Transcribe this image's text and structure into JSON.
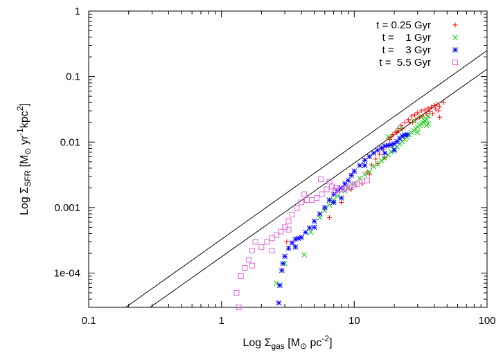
{
  "chart_data": {
    "type": "scatter",
    "x_scale": "log",
    "y_scale": "log",
    "xlim": [
      0.1,
      100
    ],
    "ylim": [
      3e-05,
      1
    ],
    "x_ticks": [
      {
        "value": 0.1,
        "label": "0.1"
      },
      {
        "value": 1,
        "label": "1"
      },
      {
        "value": 10,
        "label": "10"
      },
      {
        "value": 100,
        "label": "100"
      }
    ],
    "y_ticks": [
      {
        "value": 0.0001,
        "label": "1e-04"
      },
      {
        "value": 0.001,
        "label": "0.001"
      },
      {
        "value": 0.01,
        "label": "0.01"
      },
      {
        "value": 0.1,
        "label": "0.1"
      },
      {
        "value": 1,
        "label": "1"
      }
    ],
    "xlabel": {
      "prefix": "Log Σ",
      "sub": "gas",
      "unit_open": " [M",
      "sun": "⊙",
      "unit_mid": " pc",
      "sup": "-2",
      "unit_close": "]"
    },
    "ylabel": {
      "prefix": "Log Σ",
      "sub": "SFR",
      "unit_open": " [M",
      "sun": "⊙",
      "unit_mid1": " yr",
      "sup1": "-1",
      "unit_mid2": "kpc",
      "sup2": "2",
      "unit_close": "]"
    },
    "legend_position": "top-right",
    "reference_lines": [
      {
        "name": "upper",
        "x": [
          0.19,
          100
        ],
        "y": [
          3e-05,
          0.25
        ]
      },
      {
        "name": "lower",
        "x": [
          0.29,
          100
        ],
        "y": [
          3e-05,
          0.13
        ]
      }
    ],
    "series": [
      {
        "name": "t = 0.25 Gyr",
        "marker": "plus",
        "color": "#ff0000",
        "points": [
          [
            11.5,
            0.0023
          ],
          [
            12.5,
            0.0035
          ],
          [
            13.5,
            0.0045
          ],
          [
            14.5,
            0.0055
          ],
          [
            15.5,
            0.0065
          ],
          [
            16.5,
            0.0078
          ],
          [
            17.5,
            0.009
          ],
          [
            18.5,
            0.011
          ],
          [
            19.5,
            0.013
          ],
          [
            20.5,
            0.0145
          ],
          [
            21.5,
            0.016
          ],
          [
            22.5,
            0.018
          ],
          [
            24,
            0.02
          ],
          [
            25.5,
            0.022
          ],
          [
            27,
            0.025
          ],
          [
            28.5,
            0.026
          ],
          [
            30,
            0.028
          ],
          [
            32,
            0.03
          ],
          [
            34,
            0.031
          ],
          [
            36,
            0.033
          ],
          [
            38,
            0.034
          ],
          [
            40,
            0.036
          ],
          [
            42,
            0.038
          ],
          [
            44,
            0.035
          ],
          [
            47,
            0.04
          ],
          [
            43,
            0.03
          ],
          [
            41,
            0.032
          ],
          [
            39,
            0.027
          ],
          [
            37,
            0.029
          ],
          [
            35,
            0.027
          ],
          [
            33,
            0.025
          ],
          [
            31,
            0.024
          ],
          [
            29,
            0.022
          ],
          [
            27.5,
            0.02
          ],
          [
            26,
            0.02
          ],
          [
            23,
            0.016
          ],
          [
            21,
            0.014
          ],
          [
            19,
            0.012
          ],
          [
            44,
            0.024
          ],
          [
            8,
            0.0012
          ],
          [
            3.1,
            0.0003
          ],
          [
            6.5,
            0.0007
          ],
          [
            17,
            0.0058
          ],
          [
            15,
            0.0047
          ],
          [
            13,
            0.0032
          ],
          [
            9.5,
            0.0019
          ]
        ]
      },
      {
        "name": "t =    1 Gyr",
        "marker": "cross",
        "color": "#00c800",
        "points": [
          [
            2.6,
            7e-05
          ],
          [
            3,
            0.00014
          ],
          [
            3.6,
            0.00025
          ],
          [
            4.2,
            0.00019
          ],
          [
            4.7,
            0.00042
          ],
          [
            5.5,
            0.0007
          ],
          [
            6,
            0.0009
          ],
          [
            6.5,
            0.0011
          ],
          [
            7,
            0.0013
          ],
          [
            7.5,
            0.0015
          ],
          [
            8.5,
            0.0018
          ],
          [
            9,
            0.002
          ],
          [
            10,
            0.0023
          ],
          [
            11,
            0.0028
          ],
          [
            12,
            0.0032
          ],
          [
            13,
            0.0035
          ],
          [
            14,
            0.0042
          ],
          [
            15,
            0.0046
          ],
          [
            16,
            0.0052
          ],
          [
            17,
            0.0057
          ],
          [
            18,
            0.0064
          ],
          [
            19,
            0.0071
          ],
          [
            20,
            0.0078
          ],
          [
            21,
            0.0085
          ],
          [
            22,
            0.0094
          ],
          [
            23,
            0.0102
          ],
          [
            24,
            0.011
          ],
          [
            25,
            0.012
          ],
          [
            26,
            0.013
          ],
          [
            27,
            0.014
          ],
          [
            28,
            0.015
          ],
          [
            29,
            0.016
          ],
          [
            30,
            0.017
          ],
          [
            31,
            0.018
          ],
          [
            32,
            0.019
          ],
          [
            33,
            0.02
          ],
          [
            34,
            0.021
          ],
          [
            35,
            0.022
          ],
          [
            36,
            0.019
          ],
          [
            35,
            0.018
          ],
          [
            30,
            0.014
          ],
          [
            32,
            0.024
          ],
          [
            36,
            0.025
          ],
          [
            28,
            0.021
          ],
          [
            22,
            0.016
          ],
          [
            18,
            0.012
          ]
        ]
      },
      {
        "name": "t =    3 Gyr",
        "marker": "star",
        "color": "#0000ff",
        "points": [
          [
            2.7,
            3.5e-05
          ],
          [
            2.75,
            6.5e-05
          ],
          [
            2.85,
            0.00011
          ],
          [
            3,
            0.00018
          ],
          [
            3.2,
            0.00024
          ],
          [
            3.4,
            0.00029
          ],
          [
            3.6,
            0.00033
          ],
          [
            3.8,
            0.00034
          ],
          [
            4,
            0.00035
          ],
          [
            4.3,
            0.00042
          ],
          [
            4.6,
            0.00049
          ],
          [
            5,
            0.00062
          ],
          [
            5.5,
            0.0008
          ],
          [
            6,
            0.001
          ],
          [
            6.5,
            0.0013
          ],
          [
            7,
            0.0016
          ],
          [
            7.5,
            0.0018
          ],
          [
            8,
            0.002
          ],
          [
            8.5,
            0.0023
          ],
          [
            9,
            0.0026
          ],
          [
            9.5,
            0.0031
          ],
          [
            10,
            0.0036
          ],
          [
            11,
            0.0044
          ],
          [
            12,
            0.0053
          ],
          [
            13,
            0.006
          ],
          [
            14,
            0.0068
          ],
          [
            15,
            0.0075
          ],
          [
            16,
            0.0081
          ],
          [
            17,
            0.0087
          ],
          [
            18,
            0.0089
          ],
          [
            19,
            0.0091
          ],
          [
            20,
            0.0094
          ],
          [
            21,
            0.0102
          ],
          [
            22,
            0.0114
          ],
          [
            23,
            0.0124
          ],
          [
            24,
            0.0128
          ],
          [
            25,
            0.013
          ],
          [
            20,
            0.0075
          ],
          [
            17,
            0.0068
          ],
          [
            12,
            0.0044
          ],
          [
            8,
            0.0014
          ],
          [
            7,
            0.0012
          ],
          [
            5,
            0.0005
          ],
          [
            3.6,
            0.00025
          ],
          [
            2.9,
            0.00014
          ]
        ]
      },
      {
        "name": "t =  5.5 Gyr",
        "marker": "square",
        "color": "#e060e0",
        "points": [
          [
            1.35,
            3e-05
          ],
          [
            1.4,
            9e-05
          ],
          [
            1.5,
            0.00012
          ],
          [
            1.6,
            0.00016
          ],
          [
            1.7,
            0.00022
          ],
          [
            1.8,
            0.0003
          ],
          [
            2,
            0.00025
          ],
          [
            2.2,
            0.0003
          ],
          [
            2.4,
            0.00034
          ],
          [
            2.6,
            0.00038
          ],
          [
            2.8,
            0.00043
          ],
          [
            3,
            0.0005
          ],
          [
            3.2,
            0.00062
          ],
          [
            3.4,
            0.00078
          ],
          [
            3.7,
            0.00098
          ],
          [
            4,
            0.0012
          ],
          [
            4.4,
            0.0013
          ],
          [
            4.8,
            0.0013
          ],
          [
            5.2,
            0.0014
          ],
          [
            5.7,
            0.0016
          ],
          [
            6.2,
            0.0019
          ],
          [
            6.8,
            0.0021
          ],
          [
            7.3,
            0.002
          ],
          [
            7.8,
            0.0019
          ],
          [
            8.3,
            0.0019
          ],
          [
            8.8,
            0.002
          ],
          [
            9.3,
            0.0021
          ],
          [
            10,
            0.0022
          ],
          [
            10.5,
            0.0023
          ],
          [
            11.5,
            0.0025
          ],
          [
            12.5,
            0.0026
          ],
          [
            1.3,
            5e-05
          ],
          [
            1.7,
            0.00013
          ],
          [
            2.4,
            0.00022
          ],
          [
            3.2,
            0.00046
          ],
          [
            4.2,
            0.0016
          ],
          [
            5.6,
            0.0027
          ],
          [
            6.5,
            0.0025
          ],
          [
            7.2,
            0.0018
          ]
        ]
      }
    ]
  }
}
